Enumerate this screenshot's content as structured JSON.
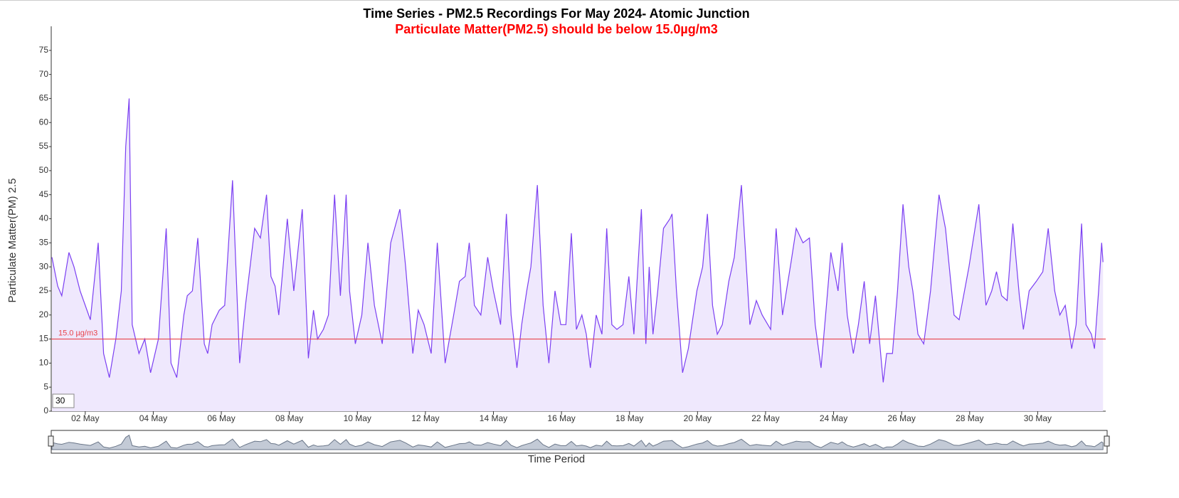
{
  "chart_data": {
    "type": "area",
    "title": "Time Series - PM2.5 Recordings For May 2024- Atomic Junction",
    "subtitle": "Particulate Matter(PM2.5) should be below 15.0µg/m3",
    "y_label": "Particulate Matter(PM) 2.5",
    "x_label": "Time Period",
    "range_input": "30",
    "color": "#7b3ff2",
    "fill": "#efe8fd",
    "threshold": 15,
    "threshold_label": "15.0 µg/m3",
    "threshold_color": "#e8434a",
    "xlim": [
      1,
      32
    ],
    "ylim": [
      0,
      80
    ],
    "yticks": [
      0,
      5,
      10,
      15,
      20,
      25,
      30,
      35,
      40,
      45,
      50,
      55,
      60,
      65,
      70,
      75
    ],
    "xticks": [
      {
        "value": 2,
        "label": "02 May"
      },
      {
        "value": 4,
        "label": "04 May"
      },
      {
        "value": 6,
        "label": "06 May"
      },
      {
        "value": 8,
        "label": "08 May"
      },
      {
        "value": 10,
        "label": "10 May"
      },
      {
        "value": 12,
        "label": "12 May"
      },
      {
        "value": 14,
        "label": "14 May"
      },
      {
        "value": 16,
        "label": "16 May"
      },
      {
        "value": 18,
        "label": "18 May"
      },
      {
        "value": 20,
        "label": "20 May"
      },
      {
        "value": 22,
        "label": "22 May"
      },
      {
        "value": 24,
        "label": "24 May"
      },
      {
        "value": 26,
        "label": "26 May"
      },
      {
        "value": 28,
        "label": "28 May"
      },
      {
        "value": 30,
        "label": "30 May"
      }
    ],
    "x": [
      1.02,
      1.19,
      1.31,
      1.52,
      1.67,
      1.85,
      2.15,
      2.38,
      2.54,
      2.71,
      2.9,
      3.06,
      3.19,
      3.29,
      3.38,
      3.58,
      3.75,
      3.92,
      4.15,
      4.38,
      4.52,
      4.69,
      4.9,
      5.0,
      5.15,
      5.31,
      5.5,
      5.6,
      5.73,
      5.94,
      6.1,
      6.33,
      6.54,
      6.71,
      6.98,
      7.15,
      7.33,
      7.46,
      7.58,
      7.69,
      7.94,
      8.13,
      8.38,
      8.56,
      8.71,
      8.83,
      9.0,
      9.15,
      9.33,
      9.5,
      9.67,
      9.77,
      9.94,
      10.13,
      10.31,
      10.5,
      10.73,
      10.98,
      11.25,
      11.42,
      11.63,
      11.79,
      11.96,
      12.17,
      12.35,
      12.58,
      12.83,
      13.0,
      13.17,
      13.29,
      13.44,
      13.63,
      13.83,
      14.0,
      14.21,
      14.38,
      14.52,
      14.69,
      14.83,
      14.98,
      15.1,
      15.29,
      15.46,
      15.63,
      15.81,
      15.98,
      16.13,
      16.29,
      16.44,
      16.6,
      16.73,
      16.85,
      17.02,
      17.19,
      17.33,
      17.48,
      17.63,
      17.81,
      17.98,
      18.13,
      18.35,
      18.48,
      18.58,
      18.69,
      18.83,
      19.0,
      19.19,
      19.25,
      19.38,
      19.56,
      19.73,
      19.98,
      20.15,
      20.29,
      20.44,
      20.58,
      20.73,
      20.92,
      21.08,
      21.29,
      21.54,
      21.73,
      21.9,
      22.15,
      22.31,
      22.5,
      22.75,
      22.9,
      23.1,
      23.29,
      23.46,
      23.63,
      23.79,
      23.92,
      24.13,
      24.25,
      24.4,
      24.58,
      24.73,
      24.9,
      25.06,
      25.23,
      25.46,
      25.56,
      25.73,
      25.88,
      26.04,
      26.21,
      26.33,
      26.48,
      26.65,
      26.85,
      27.1,
      27.29,
      27.54,
      27.69,
      27.98,
      28.27,
      28.48,
      28.65,
      28.79,
      28.94,
      29.1,
      29.27,
      29.46,
      29.58,
      29.75,
      29.96,
      30.15,
      30.31,
      30.5,
      30.65,
      30.81,
      31.0,
      31.13,
      31.29,
      31.42,
      31.58,
      31.67,
      31.79,
      31.88,
      31.92
    ],
    "values": [
      32,
      26,
      24,
      33,
      30,
      25,
      19,
      35,
      12,
      7,
      15,
      25,
      55,
      65,
      18,
      12,
      15,
      8,
      15,
      38,
      10,
      7,
      20,
      24,
      25,
      36,
      14,
      12,
      18,
      21,
      22,
      48,
      10,
      22,
      38,
      36,
      45,
      28,
      26,
      20,
      40,
      25,
      42,
      11,
      21,
      15,
      17,
      20,
      45,
      24,
      45,
      25,
      14,
      20,
      35,
      22,
      14,
      35,
      42,
      30,
      12,
      21,
      18,
      12,
      35,
      10,
      20,
      27,
      28,
      35,
      22,
      20,
      32,
      25,
      18,
      41,
      20,
      9,
      18,
      25,
      30,
      47,
      22,
      10,
      25,
      18,
      18,
      37,
      17,
      20,
      16,
      9,
      20,
      16,
      38,
      18,
      17,
      18,
      28,
      16,
      42,
      14,
      30,
      16,
      25,
      38,
      40,
      41,
      25,
      8,
      13,
      25,
      30,
      41,
      22,
      16,
      18,
      27,
      32,
      47,
      18,
      23,
      20,
      17,
      38,
      20,
      31,
      38,
      35,
      36,
      18,
      9,
      22,
      33,
      25,
      35,
      20,
      12,
      18,
      27,
      14,
      24,
      6,
      12,
      12,
      25,
      43,
      30,
      25,
      16,
      14,
      25,
      45,
      38,
      20,
      19,
      30,
      43,
      22,
      25,
      29,
      24,
      23,
      39,
      24,
      17,
      25,
      27,
      29,
      38,
      25,
      20,
      22,
      13,
      18,
      39,
      18,
      16,
      13,
      25,
      35,
      31
    ]
  }
}
